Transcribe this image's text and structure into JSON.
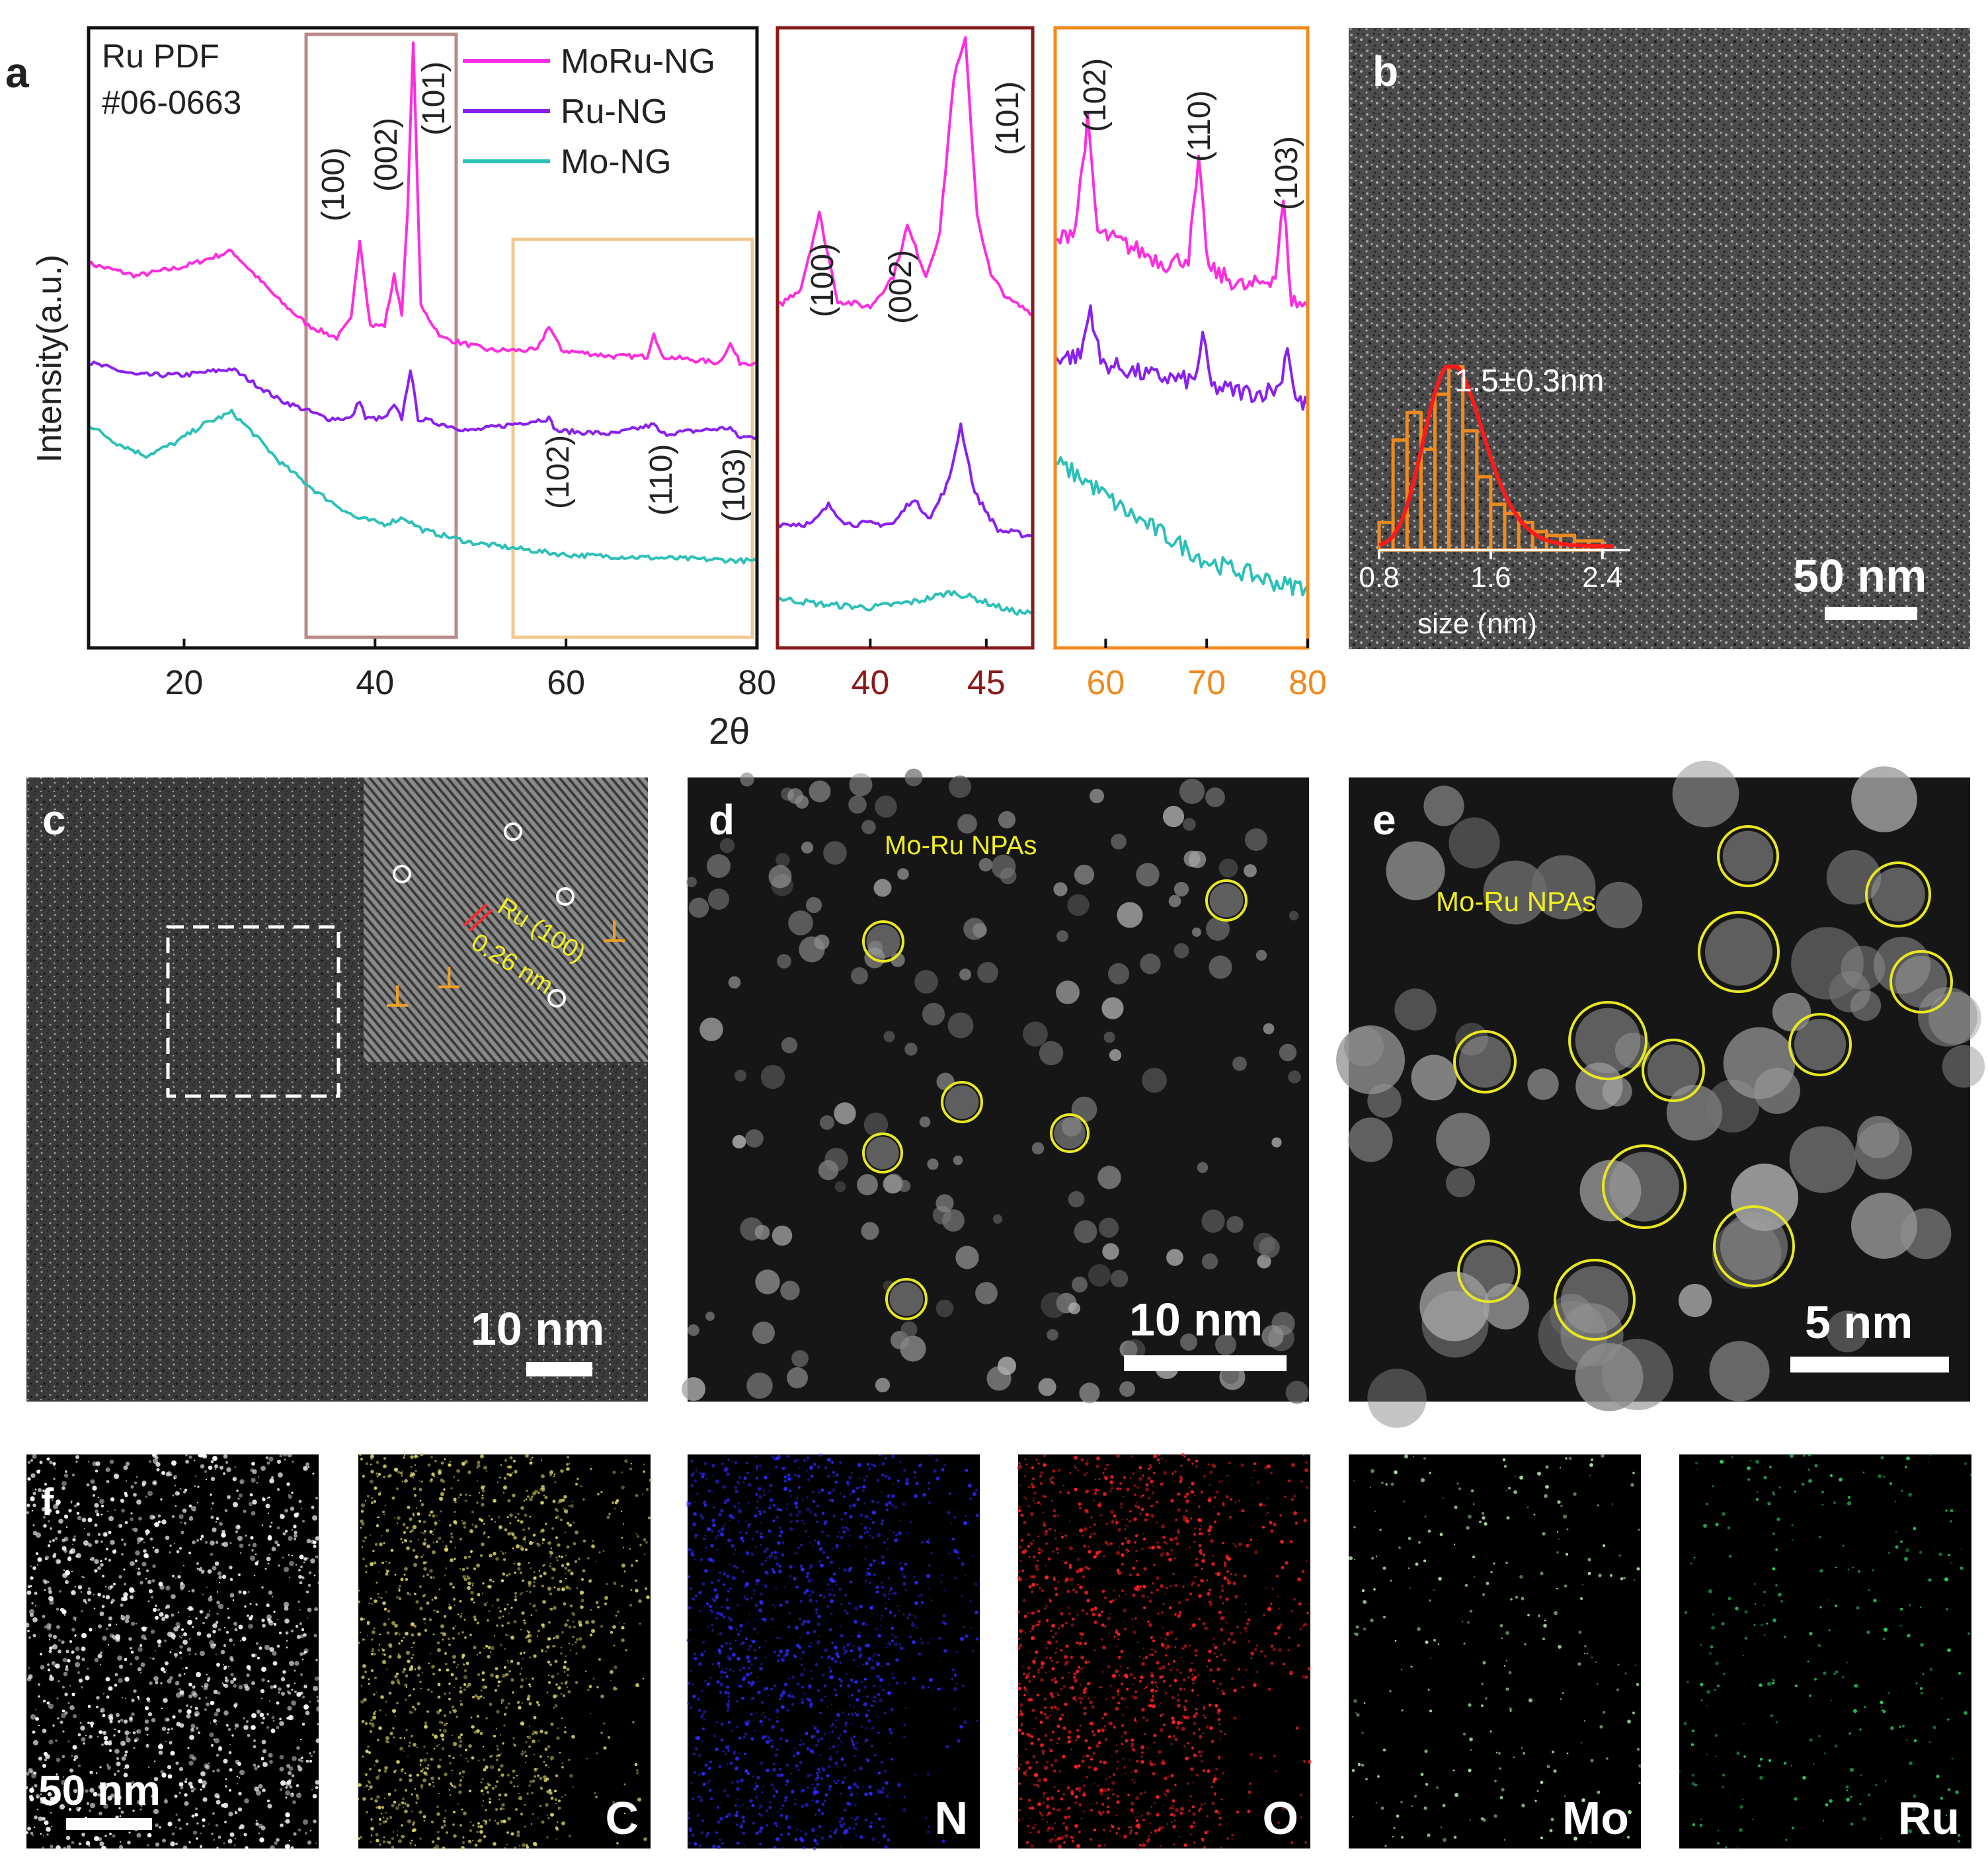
{
  "panel_labels": {
    "a": "a",
    "b": "b",
    "c": "c",
    "d": "d",
    "e": "e",
    "f": "f"
  },
  "chart_data": [
    {
      "type": "line",
      "panel": "a-main",
      "ylabel": "Intensity(a.u.)",
      "xlabel": "2θ",
      "xlim": [
        10,
        80
      ],
      "xticks": [
        "20",
        "40",
        "60",
        "80"
      ],
      "reference_text": [
        "Ru PDF",
        "#06-0663"
      ],
      "legend_position": "top-right",
      "series": [
        {
          "name": "MoRu-NG",
          "color": "#ff2ce0",
          "points": [
            [
              10,
              0.62
            ],
            [
              15,
              0.6
            ],
            [
              20,
              0.615
            ],
            [
              25,
              0.64
            ],
            [
              30,
              0.56
            ],
            [
              33,
              0.52
            ],
            [
              36,
              0.5
            ],
            [
              37.5,
              0.53
            ],
            [
              38.4,
              0.66
            ],
            [
              39.5,
              0.52
            ],
            [
              41,
              0.52
            ],
            [
              42,
              0.6
            ],
            [
              42.8,
              0.54
            ],
            [
              43.4,
              0.7
            ],
            [
              44,
              0.98
            ],
            [
              44.8,
              0.55
            ],
            [
              47,
              0.5
            ],
            [
              52,
              0.48
            ],
            [
              57,
              0.48
            ],
            [
              58.2,
              0.52
            ],
            [
              59.5,
              0.48
            ],
            [
              65,
              0.47
            ],
            [
              68.5,
              0.47
            ],
            [
              69.2,
              0.51
            ],
            [
              70,
              0.47
            ],
            [
              76,
              0.46
            ],
            [
              77.2,
              0.49
            ],
            [
              78.2,
              0.46
            ],
            [
              80,
              0.46
            ]
          ]
        },
        {
          "name": "Ru-NG",
          "color": "#8a20f0",
          "points": [
            [
              10,
              0.46
            ],
            [
              15,
              0.44
            ],
            [
              20,
              0.44
            ],
            [
              25,
              0.45
            ],
            [
              30,
              0.4
            ],
            [
              35,
              0.37
            ],
            [
              37.5,
              0.37
            ],
            [
              38.4,
              0.4
            ],
            [
              39,
              0.37
            ],
            [
              41,
              0.37
            ],
            [
              42,
              0.39
            ],
            [
              42.8,
              0.37
            ],
            [
              43.7,
              0.45
            ],
            [
              44.5,
              0.37
            ],
            [
              50,
              0.35
            ],
            [
              58.2,
              0.37
            ],
            [
              59,
              0.35
            ],
            [
              65,
              0.345
            ],
            [
              69.2,
              0.36
            ],
            [
              70,
              0.345
            ],
            [
              77.2,
              0.355
            ],
            [
              78,
              0.34
            ],
            [
              80,
              0.34
            ]
          ]
        },
        {
          "name": "Mo-NG",
          "color": "#2cc0b8",
          "points": [
            [
              10,
              0.36
            ],
            [
              13,
              0.33
            ],
            [
              16,
              0.31
            ],
            [
              19,
              0.33
            ],
            [
              22,
              0.36
            ],
            [
              25,
              0.38
            ],
            [
              27,
              0.35
            ],
            [
              30,
              0.3
            ],
            [
              34,
              0.25
            ],
            [
              38,
              0.21
            ],
            [
              41,
              0.2
            ],
            [
              43,
              0.21
            ],
            [
              45,
              0.19
            ],
            [
              50,
              0.17
            ],
            [
              55,
              0.16
            ],
            [
              60,
              0.15
            ],
            [
              70,
              0.145
            ],
            [
              80,
              0.14
            ]
          ]
        }
      ],
      "peak_labels": [
        "(100)",
        "(002)",
        "(101)",
        "(102)",
        "(110)",
        "(103)"
      ],
      "highlight_boxes": [
        {
          "xrange": [
            33,
            49
          ],
          "color": "#b88a8a"
        },
        {
          "xrange": [
            55,
            79
          ],
          "color": "#f0c890"
        }
      ]
    },
    {
      "type": "line",
      "panel": "a-zoom1",
      "xlim": [
        36,
        47
      ],
      "xticks": [
        "40",
        "45"
      ],
      "tick_color": "#8b1a1a",
      "frame_color": "#8b1a1a",
      "peak_labels": [
        "(100)",
        "(002)",
        "(101)"
      ],
      "series": [
        {
          "name": "MoRu-NG",
          "color": "#ff2ce0",
          "points": [
            [
              36,
              0.55
            ],
            [
              37,
              0.58
            ],
            [
              37.8,
              0.7
            ],
            [
              38.6,
              0.56
            ],
            [
              40,
              0.55
            ],
            [
              41,
              0.6
            ],
            [
              41.6,
              0.68
            ],
            [
              42.4,
              0.6
            ],
            [
              43,
              0.67
            ],
            [
              43.6,
              0.92
            ],
            [
              44.1,
              0.98
            ],
            [
              44.6,
              0.7
            ],
            [
              45.2,
              0.6
            ],
            [
              46,
              0.56
            ],
            [
              47,
              0.54
            ]
          ]
        },
        {
          "name": "Ru-NG",
          "color": "#8a20f0",
          "points": [
            [
              36,
              0.2
            ],
            [
              37.5,
              0.2
            ],
            [
              38.2,
              0.23
            ],
            [
              39,
              0.2
            ],
            [
              41,
              0.2
            ],
            [
              41.8,
              0.24
            ],
            [
              42.6,
              0.21
            ],
            [
              43.4,
              0.27
            ],
            [
              43.9,
              0.36
            ],
            [
              44.5,
              0.25
            ],
            [
              45.5,
              0.19
            ],
            [
              47,
              0.18
            ]
          ]
        },
        {
          "name": "Mo-NG",
          "color": "#2cc0b8",
          "points": [
            [
              36,
              0.08
            ],
            [
              38,
              0.07
            ],
            [
              40,
              0.065
            ],
            [
              42,
              0.075
            ],
            [
              43.5,
              0.09
            ],
            [
              44.5,
              0.08
            ],
            [
              46,
              0.06
            ],
            [
              47,
              0.055
            ]
          ]
        }
      ]
    },
    {
      "type": "line",
      "panel": "a-zoom2",
      "xlim": [
        55,
        80
      ],
      "xticks": [
        "60",
        "70",
        "80"
      ],
      "tick_color": "#f08a1e",
      "frame_color": "#f08a1e",
      "peak_labels": [
        "(102)",
        "(110)",
        "(103)"
      ],
      "series": [
        {
          "name": "MoRu-NG",
          "color": "#ff2ce0",
          "points": [
            [
              55,
              0.65
            ],
            [
              57,
              0.68
            ],
            [
              58.2,
              0.85
            ],
            [
              59.2,
              0.67
            ],
            [
              62,
              0.65
            ],
            [
              66,
              0.62
            ],
            [
              68.2,
              0.63
            ],
            [
              69.2,
              0.78
            ],
            [
              70.2,
              0.61
            ],
            [
              74,
              0.58
            ],
            [
              76.8,
              0.6
            ],
            [
              77.6,
              0.72
            ],
            [
              78.4,
              0.56
            ],
            [
              80,
              0.55
            ]
          ]
        },
        {
          "name": "Ru-NG",
          "color": "#8a20f0",
          "points": [
            [
              55,
              0.47
            ],
            [
              57.5,
              0.47
            ],
            [
              58.5,
              0.55
            ],
            [
              59.5,
              0.46
            ],
            [
              64,
              0.44
            ],
            [
              68.8,
              0.43
            ],
            [
              69.6,
              0.5
            ],
            [
              70.5,
              0.42
            ],
            [
              75,
              0.41
            ],
            [
              77.2,
              0.42
            ],
            [
              78,
              0.49
            ],
            [
              78.8,
              0.4
            ],
            [
              80,
              0.39
            ]
          ]
        },
        {
          "name": "Mo-NG",
          "color": "#2cc0b8",
          "points": [
            [
              55,
              0.3
            ],
            [
              58,
              0.27
            ],
            [
              62,
              0.22
            ],
            [
              66,
              0.18
            ],
            [
              70,
              0.14
            ],
            [
              74,
              0.12
            ],
            [
              78,
              0.1
            ],
            [
              80,
              0.1
            ]
          ]
        }
      ]
    },
    {
      "type": "bar",
      "panel": "b-inset",
      "xlabel": "size (nm)",
      "annotation": "1.5±0.3nm",
      "xticks": [
        "0.8",
        "1.6",
        "2.4"
      ],
      "xlim": [
        0.8,
        2.6
      ],
      "bin_centers": [
        0.85,
        0.95,
        1.05,
        1.15,
        1.25,
        1.35,
        1.45,
        1.55,
        1.65,
        1.75,
        1.85,
        1.95,
        2.05,
        2.15,
        2.25,
        2.35
      ],
      "values": [
        0.15,
        0.6,
        0.75,
        0.55,
        0.85,
        1.0,
        0.65,
        0.4,
        0.25,
        0.2,
        0.15,
        0.1,
        0.08,
        0.08,
        0.05,
        0.05
      ],
      "fit_color": "#ff1a1a",
      "bar_color": "#f08a1e"
    }
  ],
  "panel_b": {
    "scalebar": "50 nm"
  },
  "panel_c": {
    "scalebar": "10 nm",
    "inset_label": "Ru (100)",
    "inset_spacing": "0.26 nm"
  },
  "panel_d": {
    "title": "Mo-Ru NPAs",
    "scalebar": "10 nm"
  },
  "panel_e": {
    "title": "Mo-Ru NPAs",
    "scalebar": "5 nm"
  },
  "panel_f": {
    "scalebar": "50 nm",
    "maps": [
      {
        "label": "",
        "color": "#ffffff"
      },
      {
        "label": "C",
        "color": "#d8d060"
      },
      {
        "label": "N",
        "color": "#2a2aff"
      },
      {
        "label": "O",
        "color": "#ff2020"
      },
      {
        "label": "Mo",
        "color": "#a8e8a0"
      },
      {
        "label": "Ru",
        "color": "#28d060"
      }
    ]
  },
  "colors": {
    "moru": "#ff2ce0",
    "ru": "#8a20f0",
    "mo": "#2cc0b8",
    "circle": "#e8e820",
    "inset_text": "#f0f020"
  }
}
